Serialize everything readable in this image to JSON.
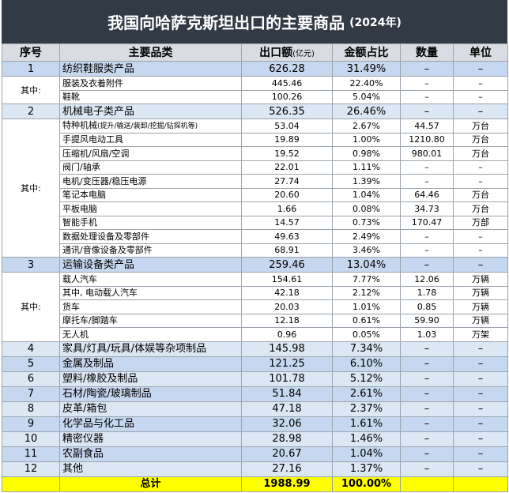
{
  "header": {
    "title": "我国向哈萨克斯坦出口的主要商品",
    "subtitle": "(2024年)"
  },
  "table": {
    "columns": [
      "序号",
      "主要品类",
      "出口额",
      "金额占比",
      "数量",
      "单位"
    ],
    "value_unit": "(亿元)",
    "items": [
      {
        "no": "1",
        "name": "纺织鞋服类产品",
        "value": "626.28",
        "share": "31.49%",
        "qty": "–",
        "unit": "–",
        "group_label": "其中:",
        "subitems": [
          {
            "name": "服装及衣着附件",
            "value": "445.46",
            "share": "22.40%",
            "qty": "–",
            "unit": "–"
          },
          {
            "name": "鞋靴",
            "value": "100.26",
            "share": "5.04%",
            "qty": "–",
            "unit": "–"
          }
        ]
      },
      {
        "no": "2",
        "name": "机械电子类产品",
        "value": "526.35",
        "share": "26.46%",
        "qty": "–",
        "unit": "–",
        "group_label": "其中:",
        "subitems": [
          {
            "name": "特种机械",
            "name_note": "(提升/输送/装卸/挖掘/钻探机等)",
            "value": "53.04",
            "share": "2.67%",
            "qty": "44.57",
            "unit": "万台"
          },
          {
            "name": "手提风电动工具",
            "value": "19.89",
            "share": "1.00%",
            "qty": "1210.80",
            "unit": "万台"
          },
          {
            "name": "压缩机/风扇/空调",
            "value": "19.52",
            "share": "0.98%",
            "qty": "980.01",
            "unit": "万台"
          },
          {
            "name": "阀门/轴承",
            "value": "22.01",
            "share": "1.11%",
            "qty": "–",
            "unit": "–"
          },
          {
            "name": "电机/变压器/稳压电源",
            "value": "27.74",
            "share": "1.39%",
            "qty": "–",
            "unit": "–"
          },
          {
            "name": "笔记本电脑",
            "value": "20.60",
            "share": "1.04%",
            "qty": "64.46",
            "unit": "万台"
          },
          {
            "name": "平板电脑",
            "value": "1.66",
            "share": "0.08%",
            "qty": "34.73",
            "unit": "万台"
          },
          {
            "name": "智能手机",
            "value": "14.57",
            "share": "0.73%",
            "qty": "170.47",
            "unit": "万部"
          },
          {
            "name": "数据处理设备及零部件",
            "value": "49.63",
            "share": "2.49%",
            "qty": "–",
            "unit": "–"
          },
          {
            "name": "通讯/音像设备及零部件",
            "value": "68.91",
            "share": "3.46%",
            "qty": "–",
            "unit": "–"
          }
        ]
      },
      {
        "no": "3",
        "name": "运输设备类产品",
        "value": "259.46",
        "share": "13.04%",
        "qty": "–",
        "unit": "–",
        "group_label": "其中:",
        "subitems": [
          {
            "name": "载人汽车",
            "value": "154.61",
            "share": "7.77%",
            "qty": "12.06",
            "unit": "万辆"
          },
          {
            "name": "其中, 电动载人汽车",
            "value": "42.18",
            "share": "2.12%",
            "qty": "1.78",
            "unit": "万辆"
          },
          {
            "name": "货车",
            "value": "20.03",
            "share": "1.01%",
            "qty": "0.85",
            "unit": "万辆"
          },
          {
            "name": "摩托车/脚踏车",
            "value": "12.18",
            "share": "0.61%",
            "qty": "59.90",
            "unit": "万辆"
          },
          {
            "name": "无人机",
            "value": "0.96",
            "share": "0.05%",
            "qty": "1.03",
            "unit": "万架"
          }
        ]
      },
      {
        "no": "4",
        "name": "家具/灯具/玩具/体娱等杂项制品",
        "value": "145.98",
        "share": "7.34%",
        "qty": "–",
        "unit": "–"
      },
      {
        "no": "5",
        "name": "金属及制品",
        "value": "121.25",
        "share": "6.10%",
        "qty": "–",
        "unit": "–"
      },
      {
        "no": "6",
        "name": "塑料/橡胶及制品",
        "value": "101.78",
        "share": "5.12%",
        "qty": "–",
        "unit": "–"
      },
      {
        "no": "7",
        "name": "石材/陶瓷/玻璃制品",
        "value": "51.84",
        "share": "2.61%",
        "qty": "–",
        "unit": "–"
      },
      {
        "no": "8",
        "name": "皮革/箱包",
        "value": "47.18",
        "share": "2.37%",
        "qty": "–",
        "unit": "–"
      },
      {
        "no": "9",
        "name": "化学品与化工品",
        "value": "32.06",
        "share": "1.61%",
        "qty": "–",
        "unit": "–"
      },
      {
        "no": "10",
        "name": "精密仪器",
        "value": "28.98",
        "share": "1.46%",
        "qty": "–",
        "unit": "–"
      },
      {
        "no": "11",
        "name": "农副食品",
        "value": "20.67",
        "share": "1.04%",
        "qty": "–",
        "unit": "–"
      },
      {
        "no": "12",
        "name": "其他",
        "value": "27.16",
        "share": "1.37%",
        "qty": "–",
        "unit": "–"
      }
    ],
    "total": {
      "label": "总计",
      "value": "1988.99",
      "share": "100.00%"
    }
  }
}
